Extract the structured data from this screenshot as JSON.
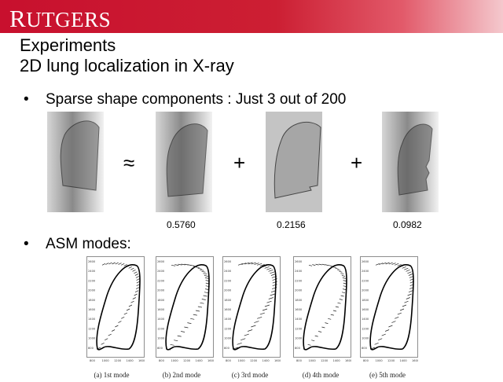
{
  "header": {
    "logo_initial": "R",
    "logo_rest": "UTGERS",
    "banner_color": "#cc1f33"
  },
  "title": {
    "line1": "Experiments",
    "line2": "2D lung localization in X-ray"
  },
  "bullets": [
    {
      "marker": "•",
      "text": "Sparse shape components : Just 3 out of 200"
    },
    {
      "marker": "•",
      "text": "ASM modes:"
    }
  ],
  "equation": {
    "approx": "≈",
    "plus": "+",
    "coefficients": [
      "0.5760",
      "0.2156",
      "0.0982"
    ]
  },
  "asm_modes": {
    "captions": [
      "(a) 1st mode",
      "(b) 2nd mode",
      "(c) 3rd mode",
      "(d) 4th mode",
      "(e) 5th mode"
    ],
    "y_ticks": [
      "2600",
      "2400",
      "2200",
      "2000",
      "1800",
      "1600",
      "1400",
      "1200",
      "1000",
      "800"
    ],
    "x_ticks": [
      "800",
      "1000",
      "1200",
      "1400",
      "1600"
    ]
  }
}
